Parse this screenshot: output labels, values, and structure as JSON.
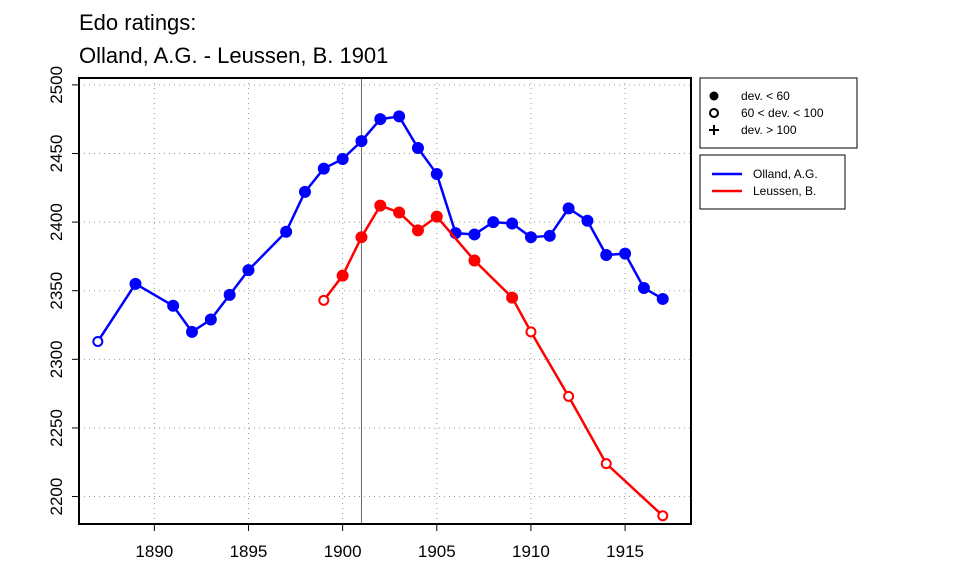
{
  "chart_data": {
    "type": "line",
    "title": [
      "Edo ratings:",
      "Olland, A.G. - Leussen, B. 1901"
    ],
    "xlabel": "",
    "ylabel": "",
    "xlim": [
      1886,
      1918.5
    ],
    "ylim": [
      2180,
      2505
    ],
    "x_ticks": [
      1890,
      1895,
      1900,
      1905,
      1910,
      1915
    ],
    "y_ticks": [
      2200,
      2250,
      2300,
      2350,
      2400,
      2450,
      2500
    ],
    "grid": true,
    "marked_year": 1901,
    "symbol_legend": [
      {
        "symbol": "filled-circle",
        "label": "dev. < 60"
      },
      {
        "symbol": "open-circle",
        "label": "60 < dev. < 100"
      },
      {
        "symbol": "plus",
        "label": "dev. > 100"
      }
    ],
    "series": [
      {
        "name": "Olland, A.G.",
        "color": "#0000ff",
        "points": [
          {
            "x": 1887,
            "y": 2313,
            "marker": "open"
          },
          {
            "x": 1889,
            "y": 2355,
            "marker": "filled"
          },
          {
            "x": 1891,
            "y": 2339,
            "marker": "filled"
          },
          {
            "x": 1892,
            "y": 2320,
            "marker": "filled"
          },
          {
            "x": 1893,
            "y": 2329,
            "marker": "filled"
          },
          {
            "x": 1894,
            "y": 2347,
            "marker": "filled"
          },
          {
            "x": 1895,
            "y": 2365,
            "marker": "filled"
          },
          {
            "x": 1897,
            "y": 2393,
            "marker": "filled"
          },
          {
            "x": 1898,
            "y": 2422,
            "marker": "filled"
          },
          {
            "x": 1899,
            "y": 2439,
            "marker": "filled"
          },
          {
            "x": 1900,
            "y": 2446,
            "marker": "filled"
          },
          {
            "x": 1901,
            "y": 2459,
            "marker": "filled"
          },
          {
            "x": 1902,
            "y": 2475,
            "marker": "filled"
          },
          {
            "x": 1903,
            "y": 2477,
            "marker": "filled"
          },
          {
            "x": 1904,
            "y": 2454,
            "marker": "filled"
          },
          {
            "x": 1905,
            "y": 2435,
            "marker": "filled"
          },
          {
            "x": 1906,
            "y": 2392,
            "marker": "filled"
          },
          {
            "x": 1907,
            "y": 2391,
            "marker": "filled"
          },
          {
            "x": 1908,
            "y": 2400,
            "marker": "filled"
          },
          {
            "x": 1909,
            "y": 2399,
            "marker": "filled"
          },
          {
            "x": 1910,
            "y": 2389,
            "marker": "filled"
          },
          {
            "x": 1911,
            "y": 2390,
            "marker": "filled"
          },
          {
            "x": 1912,
            "y": 2410,
            "marker": "filled"
          },
          {
            "x": 1913,
            "y": 2401,
            "marker": "filled"
          },
          {
            "x": 1914,
            "y": 2376,
            "marker": "filled"
          },
          {
            "x": 1915,
            "y": 2377,
            "marker": "filled"
          },
          {
            "x": 1916,
            "y": 2352,
            "marker": "filled"
          },
          {
            "x": 1917,
            "y": 2344,
            "marker": "filled"
          }
        ]
      },
      {
        "name": "Leussen, B.",
        "color": "#ff0000",
        "points": [
          {
            "x": 1899,
            "y": 2343,
            "marker": "open"
          },
          {
            "x": 1900,
            "y": 2361,
            "marker": "filled"
          },
          {
            "x": 1901,
            "y": 2389,
            "marker": "filled"
          },
          {
            "x": 1902,
            "y": 2412,
            "marker": "filled"
          },
          {
            "x": 1903,
            "y": 2407,
            "marker": "filled"
          },
          {
            "x": 1904,
            "y": 2394,
            "marker": "filled"
          },
          {
            "x": 1905,
            "y": 2404,
            "marker": "filled"
          },
          {
            "x": 1907,
            "y": 2372,
            "marker": "filled"
          },
          {
            "x": 1909,
            "y": 2345,
            "marker": "filled"
          },
          {
            "x": 1910,
            "y": 2320,
            "marker": "open"
          },
          {
            "x": 1912,
            "y": 2273,
            "marker": "open"
          },
          {
            "x": 1914,
            "y": 2224,
            "marker": "open"
          },
          {
            "x": 1917,
            "y": 2186,
            "marker": "open"
          }
        ]
      }
    ]
  }
}
